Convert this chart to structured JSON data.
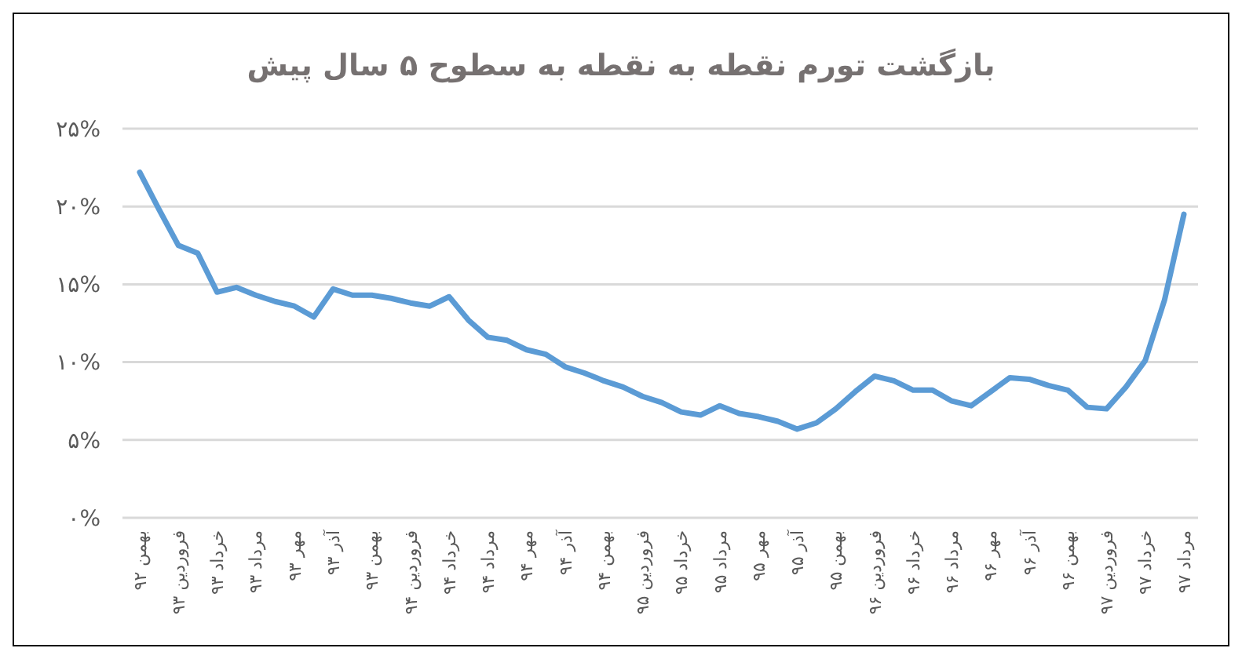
{
  "chart_data": {
    "type": "line",
    "title": "بازگشت تورم نقطه به نقطه به سطوح ۵ سال پیش",
    "categories": [
      "بهمن ۹۲",
      null,
      "فروردین ۹۳",
      null,
      "خرداد ۹۳",
      null,
      "مرداد ۹۳",
      null,
      "مهر ۹۳",
      null,
      "آذر ۹۳",
      null,
      "بهمن ۹۳",
      null,
      "فروردین ۹۴",
      null,
      "خرداد ۹۴",
      null,
      "مرداد ۹۴",
      null,
      "مهر ۹۴",
      null,
      "آذر ۹۴",
      null,
      "بهمن ۹۴",
      null,
      "فروردین ۹۵",
      null,
      "خرداد ۹۵",
      null,
      "مرداد ۹۵",
      null,
      "مهر ۹۵",
      null,
      "آذر ۹۵",
      null,
      "بهمن ۹۵",
      null,
      "فروردین ۹۶",
      null,
      "خرداد ۹۶",
      null,
      "مرداد ۹۶",
      null,
      "مهر ۹۶",
      null,
      "آذر ۹۶",
      null,
      "بهمن ۹۶",
      null,
      "فروردین ۹۷",
      null,
      "خرداد ۹۷",
      null,
      "مرداد ۹۷"
    ],
    "series": [
      {
        "color": "#5b9bd5",
        "values": [
          22.2,
          19.8,
          17.5,
          17.0,
          14.5,
          14.8,
          14.3,
          13.9,
          13.6,
          12.9,
          14.7,
          14.3,
          14.3,
          14.1,
          13.8,
          13.6,
          14.2,
          12.7,
          11.6,
          11.4,
          10.8,
          10.5,
          9.7,
          9.3,
          8.8,
          8.4,
          7.8,
          7.4,
          6.8,
          6.6,
          7.2,
          6.7,
          6.5,
          6.2,
          5.7,
          6.1,
          7.0,
          8.1,
          9.1,
          8.8,
          8.2,
          8.2,
          7.5,
          7.2,
          8.1,
          9.0,
          8.9,
          8.5,
          8.2,
          7.1,
          7.0,
          8.4,
          10.1,
          14.0,
          19.5
        ]
      }
    ],
    "ylim": [
      0,
      25
    ],
    "yticks": [
      {
        "value": 0,
        "label": "۰%"
      },
      {
        "value": 5,
        "label": "۵%"
      },
      {
        "value": 10,
        "label": "۱۰%"
      },
      {
        "value": 15,
        "label": "۱۵%"
      },
      {
        "value": 20,
        "label": "۲۰%"
      },
      {
        "value": 25,
        "label": "۲۵%"
      }
    ],
    "grid": "y",
    "marker": "none",
    "line_style": "solid"
  }
}
